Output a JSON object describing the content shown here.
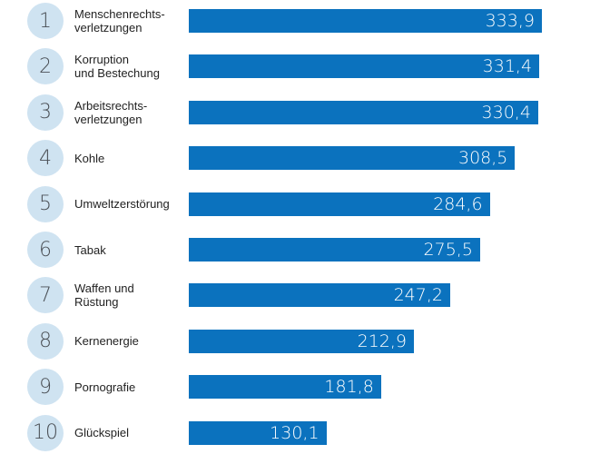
{
  "chart_data": {
    "type": "bar",
    "orientation": "horizontal",
    "title": "",
    "xlabel": "",
    "ylabel": "",
    "grid": false,
    "legend": "none",
    "xlim": [
      0,
      333.9
    ],
    "ranks": [
      "1",
      "2",
      "3",
      "4",
      "5",
      "6",
      "7",
      "8",
      "9",
      "10"
    ],
    "categories": [
      "Menschenrechts-\nverletzungen",
      "Korruption\nund Bestechung",
      "Arbeitsrechts-\nverletzungen",
      "Kohle",
      "Umweltzerstörung",
      "Tabak",
      "Waffen und\nRüstung",
      "Kernenergie",
      "Pornografie",
      "Glückspiel"
    ],
    "values": [
      333.9,
      331.4,
      330.4,
      308.5,
      284.6,
      275.5,
      247.2,
      212.9,
      181.8,
      130.1
    ],
    "value_labels": [
      "333,9",
      "331,4",
      "330,4",
      "308,5",
      "284,6",
      "275,5",
      "247,2",
      "212,9",
      "181,8",
      "130,1"
    ],
    "colors": {
      "bar": "#0b72be",
      "rank_circle": "#cfe3f1",
      "rank_text": "#4a4f55",
      "value_text": "#ffffff"
    }
  }
}
